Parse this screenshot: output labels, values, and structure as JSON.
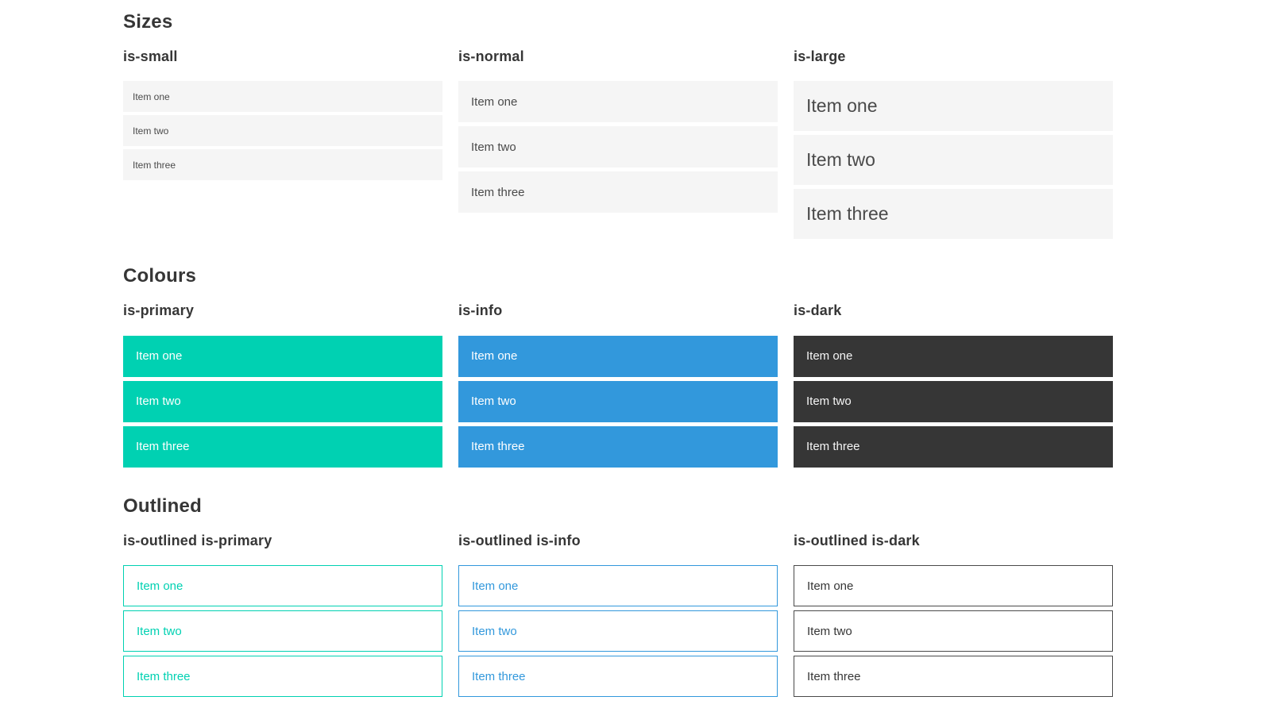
{
  "page": {
    "sections": [
      {
        "title": "Sizes",
        "groups": [
          {
            "label": "is-small",
            "items": [
              "Item one",
              "Item two",
              "Item three"
            ]
          },
          {
            "label": "is-normal",
            "items": [
              "Item one",
              "Item two",
              "Item three"
            ]
          },
          {
            "label": "is-large",
            "items": [
              "Item one",
              "Item two",
              "Item three"
            ]
          }
        ]
      },
      {
        "title": "Colours",
        "groups": [
          {
            "label": "is-primary",
            "items": [
              "Item one",
              "Item two",
              "Item three"
            ]
          },
          {
            "label": "is-info",
            "items": [
              "Item one",
              "Item two",
              "Item three"
            ]
          },
          {
            "label": "is-dark",
            "items": [
              "Item one",
              "Item two",
              "Item three"
            ]
          }
        ]
      },
      {
        "title": "Outlined",
        "groups": [
          {
            "label": "is-outlined is-primary",
            "items": [
              "Item one",
              "Item two",
              "Item three"
            ]
          },
          {
            "label": "is-outlined is-info",
            "items": [
              "Item one",
              "Item two",
              "Item three"
            ]
          },
          {
            "label": "is-outlined is-dark",
            "items": [
              "Item one",
              "Item two",
              "Item three"
            ]
          }
        ]
      }
    ]
  },
  "colors": {
    "primary": "#00d1b2",
    "info": "#3298dc",
    "dark": "#363636",
    "item_background": "#f5f5f5",
    "item_text": "#4a4a4a",
    "heading_text": "#363636"
  }
}
